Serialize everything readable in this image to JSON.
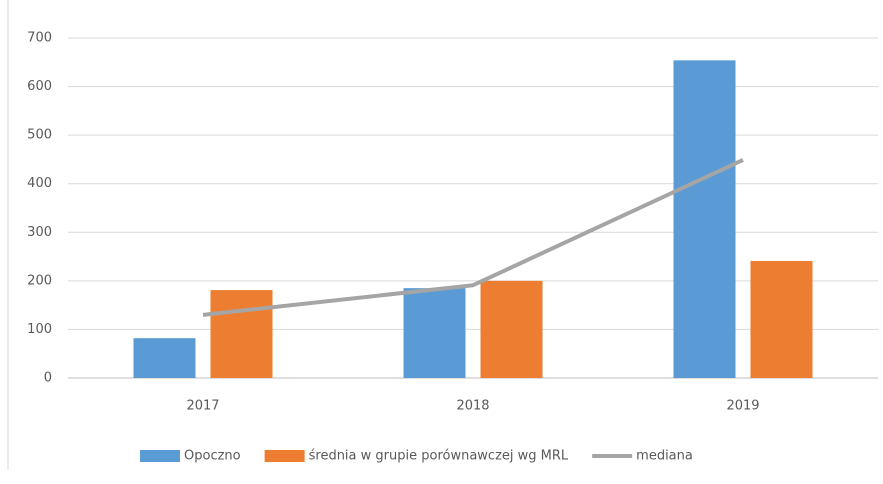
{
  "chart_data": {
    "type": "bar",
    "categories": [
      "2017",
      "2018",
      "2019"
    ],
    "series": [
      {
        "name": "Opoczno",
        "color": "#5b9bd5",
        "values": [
          82,
          185,
          654
        ]
      },
      {
        "name": "średnia w grupie porównawczej wg MRL",
        "color": "#ed7d31",
        "values": [
          181,
          200,
          241
        ]
      },
      {
        "name": "mediana",
        "color": "#a5a5a5",
        "type": "line",
        "values": [
          130,
          191,
          449
        ]
      }
    ],
    "ylim": [
      0,
      700
    ],
    "yticks": [
      0,
      100,
      200,
      300,
      400,
      500,
      600,
      700
    ],
    "grid": true,
    "legend": "bottom"
  }
}
